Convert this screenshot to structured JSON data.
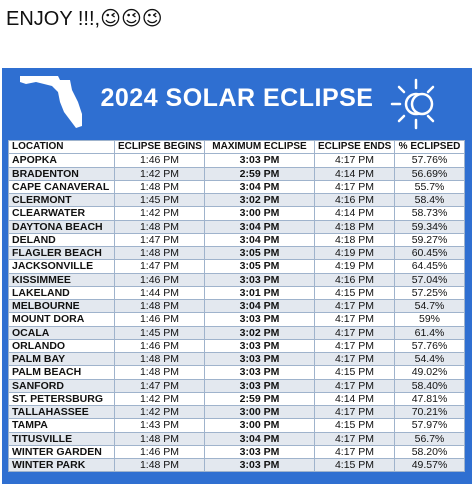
{
  "post": {
    "caption": "ENJOY !!!,😉😉😉"
  },
  "graphic": {
    "title": "2024 SOLAR ECLIPSE"
  },
  "table": {
    "columns": [
      "LOCATION",
      "ECLIPSE BEGINS",
      "MAXIMUM ECLIPSE",
      "ECLIPSE ENDS",
      "% ECLIPSED"
    ],
    "rows": [
      [
        "APOPKA",
        "1:46 PM",
        "3:03 PM",
        "4:17 PM",
        "57.76%"
      ],
      [
        "BRADENTON",
        "1:42 PM",
        "2:59 PM",
        "4:14 PM",
        "56.69%"
      ],
      [
        "CAPE CANAVERAL",
        "1:48 PM",
        "3:04 PM",
        "4:17 PM",
        "55.7%"
      ],
      [
        "CLERMONT",
        "1:45 PM",
        "3:02 PM",
        "4:16 PM",
        "58.4%"
      ],
      [
        "CLEARWATER",
        "1:42 PM",
        "3:00 PM",
        "4:14 PM",
        "58.73%"
      ],
      [
        "DAYTONA BEACH",
        "1:48 PM",
        "3:04 PM",
        "4:18 PM",
        "59.34%"
      ],
      [
        "DELAND",
        "1:47 PM",
        "3:04 PM",
        "4:18 PM",
        "59.27%"
      ],
      [
        "FLAGLER BEACH",
        "1:48 PM",
        "3:05 PM",
        "4:19 PM",
        "60.45%"
      ],
      [
        "JACKSONVILLE",
        "1:47 PM",
        "3:05 PM",
        "4:19 PM",
        "64.45%"
      ],
      [
        "KISSIMMEE",
        "1:46 PM",
        "3:03 PM",
        "4:16 PM",
        "57.04%"
      ],
      [
        "LAKELAND",
        "1:44 PM",
        "3:01 PM",
        "4:15 PM",
        "57.25%"
      ],
      [
        "MELBOURNE",
        "1:48 PM",
        "3:04 PM",
        "4:17 PM",
        "54.7%"
      ],
      [
        "MOUNT DORA",
        "1:46 PM",
        "3:03 PM",
        "4:17 PM",
        "59%"
      ],
      [
        "OCALA",
        "1:45 PM",
        "3:02 PM",
        "4:17 PM",
        "61.4%"
      ],
      [
        "ORLANDO",
        "1:46 PM",
        "3:03 PM",
        "4:17 PM",
        "57.76%"
      ],
      [
        "PALM BAY",
        "1:48 PM",
        "3:03 PM",
        "4:17 PM",
        "54.4%"
      ],
      [
        "PALM BEACH",
        "1:48 PM",
        "3:03 PM",
        "4:15 PM",
        "49.02%"
      ],
      [
        "SANFORD",
        "1:47 PM",
        "3:03 PM",
        "4:17 PM",
        "58.40%"
      ],
      [
        "ST. PETERSBURG",
        "1:42 PM",
        "2:59 PM",
        "4:14 PM",
        "47.81%"
      ],
      [
        "TALLAHASSEE",
        "1:42 PM",
        "3:00 PM",
        "4:17 PM",
        "70.21%"
      ],
      [
        "TAMPA",
        "1:43 PM",
        "3:00 PM",
        "4:15 PM",
        "57.97%"
      ],
      [
        "TITUSVILLE",
        "1:48 PM",
        "3:04 PM",
        "4:17 PM",
        "56.7%"
      ],
      [
        "WINTER GARDEN",
        "1:46 PM",
        "3:03 PM",
        "4:17 PM",
        "58.20%"
      ],
      [
        "WINTER PARK",
        "1:48 PM",
        "3:03 PM",
        "4:15 PM",
        "49.57%"
      ]
    ]
  }
}
